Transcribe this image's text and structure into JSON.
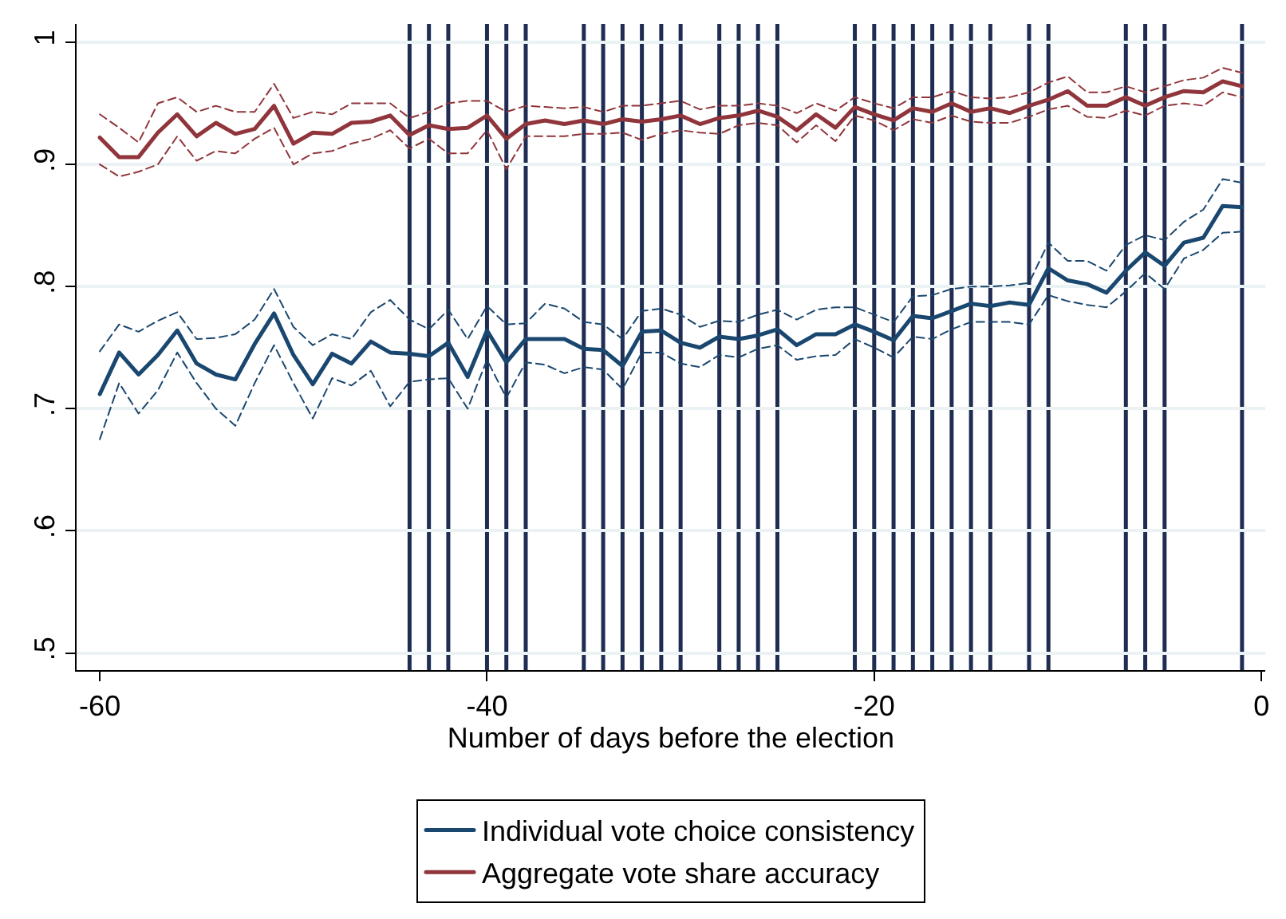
{
  "chart_data": {
    "type": "line",
    "xlabel": "Number of days before the election",
    "x": [
      -60,
      -59,
      -58,
      -57,
      -56,
      -55,
      -54,
      -53,
      -52,
      -51,
      -50,
      -49,
      -48,
      -47,
      -46,
      -45,
      -44,
      -43,
      -42,
      -41,
      -40,
      -39,
      -38,
      -37,
      -36,
      -35,
      -34,
      -33,
      -32,
      -31,
      -30,
      -29,
      -28,
      -27,
      -26,
      -25,
      -24,
      -23,
      -22,
      -21,
      -20,
      -19,
      -18,
      -17,
      -16,
      -15,
      -14,
      -13,
      -12,
      -11,
      -10,
      -9,
      -8,
      -7,
      -6,
      -5,
      -4,
      -3,
      -2,
      -1
    ],
    "series": [
      {
        "name": "Individual vote choice consistency",
        "color": "#1a476f",
        "values": [
          0.712,
          0.746,
          0.728,
          0.744,
          0.764,
          0.737,
          0.728,
          0.724,
          0.753,
          0.778,
          0.744,
          0.72,
          0.745,
          0.737,
          0.755,
          0.746,
          0.745,
          0.743,
          0.754,
          0.726,
          0.764,
          0.738,
          0.757,
          0.757,
          0.757,
          0.749,
          0.748,
          0.735,
          0.763,
          0.764,
          0.754,
          0.75,
          0.759,
          0.757,
          0.76,
          0.765,
          0.752,
          0.761,
          0.761,
          0.769,
          0.763,
          0.756,
          0.776,
          0.774,
          0.78,
          0.786,
          0.784,
          0.787,
          0.785,
          0.815,
          0.805,
          0.802,
          0.795,
          0.813,
          0.828,
          0.817,
          0.836,
          0.84,
          0.866,
          0.865
        ]
      },
      {
        "name": "Aggregate vote share accuracy",
        "color": "#90353b",
        "values": [
          0.922,
          0.906,
          0.906,
          0.926,
          0.941,
          0.923,
          0.934,
          0.925,
          0.929,
          0.948,
          0.917,
          0.926,
          0.925,
          0.934,
          0.935,
          0.94,
          0.924,
          0.932,
          0.929,
          0.93,
          0.94,
          0.921,
          0.933,
          0.936,
          0.933,
          0.936,
          0.933,
          0.937,
          0.935,
          0.937,
          0.94,
          0.933,
          0.938,
          0.94,
          0.944,
          0.939,
          0.928,
          0.941,
          0.93,
          0.947,
          0.941,
          0.936,
          0.946,
          0.943,
          0.95,
          0.943,
          0.946,
          0.942,
          0.948,
          0.953,
          0.96,
          0.948,
          0.948,
          0.955,
          0.948,
          0.955,
          0.96,
          0.959,
          0.968,
          0.964
        ]
      },
      {
        "color": "#1a476f",
        "line_style": "dashed",
        "values": [
          0.747,
          0.769,
          0.763,
          0.772,
          0.779,
          0.757,
          0.758,
          0.761,
          0.773,
          0.798,
          0.767,
          0.752,
          0.761,
          0.757,
          0.779,
          0.789,
          0.773,
          0.765,
          0.781,
          0.757,
          0.784,
          0.769,
          0.77,
          0.786,
          0.782,
          0.771,
          0.769,
          0.757,
          0.78,
          0.782,
          0.777,
          0.767,
          0.772,
          0.771,
          0.777,
          0.781,
          0.773,
          0.781,
          0.783,
          0.783,
          0.777,
          0.771,
          0.792,
          0.793,
          0.798,
          0.8,
          0.8,
          0.801,
          0.803,
          0.836,
          0.821,
          0.821,
          0.813,
          0.834,
          0.842,
          0.838,
          0.853,
          0.863,
          0.888,
          0.885
        ]
      },
      {
        "color": "#1a476f",
        "line_style": "dashed",
        "values": [
          0.675,
          0.721,
          0.696,
          0.715,
          0.746,
          0.721,
          0.7,
          0.686,
          0.721,
          0.752,
          0.721,
          0.692,
          0.725,
          0.719,
          0.731,
          0.702,
          0.722,
          0.724,
          0.725,
          0.7,
          0.74,
          0.709,
          0.738,
          0.736,
          0.729,
          0.734,
          0.732,
          0.716,
          0.746,
          0.746,
          0.737,
          0.734,
          0.744,
          0.742,
          0.749,
          0.752,
          0.74,
          0.743,
          0.744,
          0.757,
          0.75,
          0.742,
          0.759,
          0.757,
          0.765,
          0.771,
          0.771,
          0.771,
          0.769,
          0.793,
          0.788,
          0.785,
          0.783,
          0.796,
          0.811,
          0.798,
          0.823,
          0.83,
          0.844,
          0.845
        ]
      },
      {
        "color": "#90353b",
        "line_style": "dashed",
        "values": [
          0.941,
          0.93,
          0.918,
          0.95,
          0.955,
          0.943,
          0.948,
          0.943,
          0.943,
          0.966,
          0.938,
          0.943,
          0.941,
          0.95,
          0.95,
          0.95,
          0.938,
          0.943,
          0.95,
          0.952,
          0.952,
          0.943,
          0.948,
          0.947,
          0.946,
          0.947,
          0.943,
          0.948,
          0.948,
          0.95,
          0.952,
          0.945,
          0.948,
          0.948,
          0.95,
          0.948,
          0.942,
          0.95,
          0.944,
          0.955,
          0.95,
          0.946,
          0.955,
          0.955,
          0.96,
          0.955,
          0.954,
          0.955,
          0.959,
          0.967,
          0.972,
          0.959,
          0.959,
          0.964,
          0.959,
          0.964,
          0.969,
          0.971,
          0.979,
          0.975
        ]
      },
      {
        "color": "#90353b",
        "line_style": "dashed",
        "values": [
          0.9,
          0.89,
          0.894,
          0.9,
          0.923,
          0.903,
          0.911,
          0.909,
          0.921,
          0.93,
          0.9,
          0.909,
          0.911,
          0.917,
          0.921,
          0.928,
          0.913,
          0.921,
          0.909,
          0.909,
          0.928,
          0.896,
          0.923,
          0.923,
          0.923,
          0.925,
          0.925,
          0.926,
          0.92,
          0.925,
          0.928,
          0.926,
          0.925,
          0.932,
          0.934,
          0.932,
          0.918,
          0.932,
          0.919,
          0.94,
          0.936,
          0.928,
          0.937,
          0.934,
          0.94,
          0.935,
          0.934,
          0.934,
          0.939,
          0.945,
          0.948,
          0.939,
          0.938,
          0.944,
          0.94,
          0.948,
          0.95,
          0.948,
          0.959,
          0.955
        ]
      }
    ],
    "ref_lines": [
      {
        "axis": "x",
        "value": -44,
        "color": "#1f2d52"
      },
      {
        "axis": "x",
        "value": -43,
        "color": "#1f2d52"
      },
      {
        "axis": "x",
        "value": -42,
        "color": "#1f2d52"
      },
      {
        "axis": "x",
        "value": -40,
        "color": "#1f2d52"
      },
      {
        "axis": "x",
        "value": -39,
        "color": "#1f2d52"
      },
      {
        "axis": "x",
        "value": -38,
        "color": "#1f2d52"
      },
      {
        "axis": "x",
        "value": -35,
        "color": "#1f2d52"
      },
      {
        "axis": "x",
        "value": -34,
        "color": "#1f2d52"
      },
      {
        "axis": "x",
        "value": -33,
        "color": "#1f2d52"
      },
      {
        "axis": "x",
        "value": -32,
        "color": "#1f2d52"
      },
      {
        "axis": "x",
        "value": -31,
        "color": "#1f2d52"
      },
      {
        "axis": "x",
        "value": -30,
        "color": "#1f2d52"
      },
      {
        "axis": "x",
        "value": -28,
        "color": "#1f2d52"
      },
      {
        "axis": "x",
        "value": -27,
        "color": "#1f2d52"
      },
      {
        "axis": "x",
        "value": -26,
        "color": "#1f2d52"
      },
      {
        "axis": "x",
        "value": -25,
        "color": "#1f2d52"
      },
      {
        "axis": "x",
        "value": -21,
        "color": "#1f2d52"
      },
      {
        "axis": "x",
        "value": -20,
        "color": "#1f2d52"
      },
      {
        "axis": "x",
        "value": -19,
        "color": "#1f2d52"
      },
      {
        "axis": "x",
        "value": -18,
        "color": "#1f2d52"
      },
      {
        "axis": "x",
        "value": -17,
        "color": "#1f2d52"
      },
      {
        "axis": "x",
        "value": -16,
        "color": "#1f2d52"
      },
      {
        "axis": "x",
        "value": -15,
        "color": "#1f2d52"
      },
      {
        "axis": "x",
        "value": -14,
        "color": "#1f2d52"
      },
      {
        "axis": "x",
        "value": -12,
        "color": "#1f2d52"
      },
      {
        "axis": "x",
        "value": -11,
        "color": "#1f2d52"
      },
      {
        "axis": "x",
        "value": -7,
        "color": "#1f2d52"
      },
      {
        "axis": "x",
        "value": -6,
        "color": "#1f2d52"
      },
      {
        "axis": "x",
        "value": -5,
        "color": "#1f2d52"
      },
      {
        "axis": "x",
        "value": -1,
        "color": "#1f2d52"
      }
    ],
    "xlim": [
      -61.2,
      0.2
    ],
    "xticks": [
      -60,
      -40,
      -20,
      0
    ],
    "ylim": [
      0.486,
      1.015
    ],
    "yticks": [
      {
        "value": 0.5,
        "label": ".5"
      },
      {
        "value": 0.6,
        "label": ".6"
      },
      {
        "value": 0.7,
        "label": ".7"
      },
      {
        "value": 0.8,
        "label": ".8"
      },
      {
        "value": 0.9,
        "label": ".9"
      },
      {
        "value": 1,
        "label": "1"
      }
    ],
    "grid": "y",
    "legend": "bottom",
    "line_style": "solid",
    "marker": "none"
  }
}
